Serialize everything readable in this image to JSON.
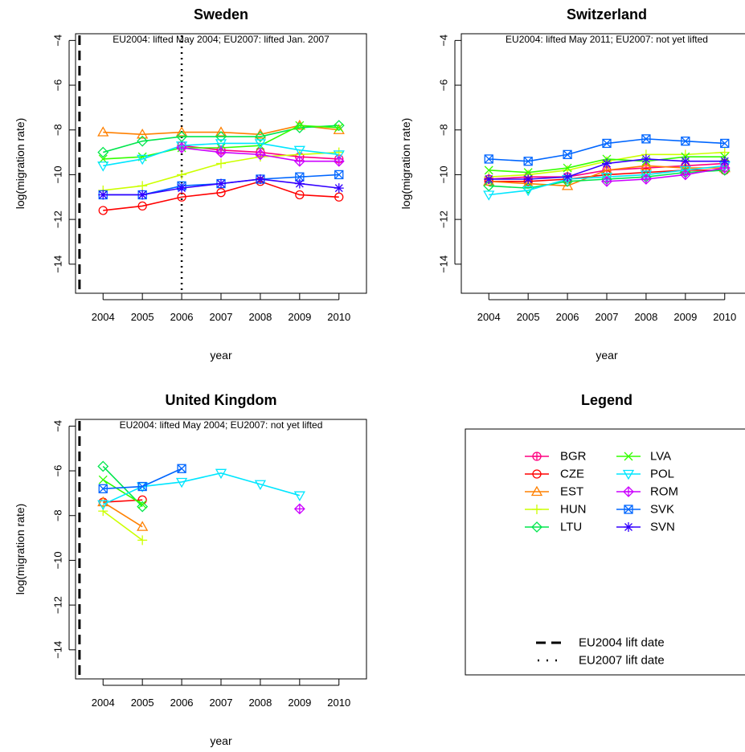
{
  "chart_data": [
    {
      "type": "line",
      "title": "Sweden",
      "subtitle": "EU2004: lifted May 2004; EU2007: lifted Jan. 2007",
      "xlabel": "year",
      "ylabel": "log(migration rate)",
      "x": [
        2004,
        2005,
        2006,
        2007,
        2008,
        2009,
        2010
      ],
      "x_ticks": [
        "2004",
        "2005",
        "2006",
        "2007",
        "2008",
        "2009",
        "2010"
      ],
      "y_ticks": [
        "−4",
        "−6",
        "−8",
        "−10",
        "−12",
        "−14"
      ],
      "ylim": [
        -15.3,
        -3.7
      ],
      "vlines": [
        {
          "name": "EU2004 lift date",
          "x": 2003.4,
          "style": "dashed"
        },
        {
          "name": "EU2007 lift date",
          "x": 2006.0,
          "style": "dotted"
        }
      ],
      "series": [
        {
          "name": "BGR",
          "values": [
            null,
            null,
            -8.7,
            -8.9,
            -9.0,
            -9.2,
            -9.3
          ]
        },
        {
          "name": "CZE",
          "values": [
            -11.6,
            -11.4,
            -11.0,
            -10.8,
            -10.3,
            -10.9,
            -11.0
          ]
        },
        {
          "name": "EST",
          "values": [
            -8.1,
            -8.2,
            -8.1,
            -8.1,
            -8.2,
            -7.8,
            -8.0
          ]
        },
        {
          "name": "HUN",
          "values": [
            -10.7,
            -10.5,
            -10.0,
            -9.5,
            -9.2,
            -9.1,
            -9.0
          ]
        },
        {
          "name": "LTU",
          "values": [
            -9.0,
            -8.5,
            -8.3,
            -8.3,
            -8.3,
            -7.9,
            -7.8
          ]
        },
        {
          "name": "LVA",
          "values": [
            -9.3,
            -9.2,
            -8.8,
            -8.8,
            -8.7,
            -7.8,
            -7.9
          ]
        },
        {
          "name": "POL",
          "values": [
            -9.6,
            -9.3,
            -8.7,
            -8.6,
            -8.6,
            -8.9,
            -9.1
          ]
        },
        {
          "name": "ROM",
          "values": [
            null,
            null,
            -8.8,
            -9.0,
            -9.1,
            -9.4,
            -9.4
          ]
        },
        {
          "name": "SVK",
          "values": [
            -10.9,
            -10.9,
            -10.5,
            -10.4,
            -10.2,
            -10.1,
            -10.0
          ]
        },
        {
          "name": "SVN",
          "values": [
            -10.9,
            -10.9,
            -10.6,
            -10.4,
            -10.2,
            -10.4,
            -10.6
          ]
        }
      ]
    },
    {
      "type": "line",
      "title": "Switzerland",
      "subtitle": "EU2004: lifted May 2011; EU2007: not yet lifted",
      "xlabel": "year",
      "ylabel": "log(migration rate)",
      "x": [
        2004,
        2005,
        2006,
        2007,
        2008,
        2009,
        2010
      ],
      "x_ticks": [
        "2004",
        "2005",
        "2006",
        "2007",
        "2008",
        "2009",
        "2010"
      ],
      "y_ticks": [
        "−4",
        "−6",
        "−8",
        "−10",
        "−12",
        "−14"
      ],
      "ylim": [
        -15.3,
        -3.7
      ],
      "vlines": [],
      "series": [
        {
          "name": "BGR",
          "values": [
            -10.2,
            -10.1,
            -10.1,
            -9.8,
            -9.7,
            -9.6,
            -9.5
          ]
        },
        {
          "name": "CZE",
          "values": [
            -10.3,
            -10.3,
            -10.2,
            -10.0,
            -9.9,
            -9.8,
            -9.8
          ]
        },
        {
          "name": "EST",
          "values": [
            -10.3,
            -10.4,
            -10.5,
            -9.8,
            -9.6,
            -9.7,
            -9.7
          ]
        },
        {
          "name": "HUN",
          "values": [
            -10.1,
            -10.0,
            -9.8,
            -9.4,
            -9.1,
            -9.1,
            -9.0
          ]
        },
        {
          "name": "LTU",
          "values": [
            -10.5,
            -10.6,
            -10.3,
            -10.2,
            -10.1,
            -9.9,
            -9.8
          ]
        },
        {
          "name": "LVA",
          "values": [
            -9.8,
            -9.9,
            -9.7,
            -9.3,
            -9.4,
            -9.2,
            -9.2
          ]
        },
        {
          "name": "POL",
          "values": [
            -10.9,
            -10.7,
            -10.2,
            -10.1,
            -10.0,
            -9.8,
            -9.6
          ]
        },
        {
          "name": "ROM",
          "values": [
            null,
            null,
            null,
            -10.3,
            -10.2,
            -10.0,
            -9.7
          ]
        },
        {
          "name": "SVK",
          "values": [
            -9.3,
            -9.4,
            -9.1,
            -8.6,
            -8.4,
            -8.5,
            -8.6
          ]
        },
        {
          "name": "SVN",
          "values": [
            -10.2,
            -10.2,
            -10.1,
            -9.5,
            -9.3,
            -9.4,
            -9.4
          ]
        }
      ]
    },
    {
      "type": "line",
      "title": "United Kingdom",
      "subtitle": "EU2004: lifted May 2004; EU2007: not yet lifted",
      "xlabel": "year",
      "ylabel": "log(migration rate)",
      "x": [
        2004,
        2005,
        2006,
        2007,
        2008,
        2009,
        2010
      ],
      "x_ticks": [
        "2004",
        "2005",
        "2006",
        "2007",
        "2008",
        "2009",
        "2010"
      ],
      "y_ticks": [
        "−4",
        "−6",
        "−8",
        "−10",
        "−12",
        "−14"
      ],
      "ylim": [
        -15.3,
        -3.7
      ],
      "vlines": [
        {
          "name": "EU2004 lift date",
          "x": 2003.4,
          "style": "dashed"
        }
      ],
      "series": [
        {
          "name": "BGR",
          "values": [
            null,
            null,
            null,
            null,
            null,
            null,
            null
          ]
        },
        {
          "name": "CZE",
          "values": [
            -7.4,
            -7.3,
            null,
            null,
            null,
            null,
            null
          ]
        },
        {
          "name": "EST",
          "values": [
            -7.4,
            -8.5,
            null,
            null,
            null,
            null,
            null
          ]
        },
        {
          "name": "HUN",
          "values": [
            -7.8,
            -9.1,
            null,
            null,
            null,
            null,
            null
          ]
        },
        {
          "name": "LTU",
          "values": [
            -5.8,
            -7.6,
            null,
            null,
            null,
            null,
            null
          ]
        },
        {
          "name": "LVA",
          "values": [
            -6.4,
            -7.5,
            null,
            null,
            null,
            null,
            null
          ]
        },
        {
          "name": "POL",
          "values": [
            -7.5,
            -6.7,
            -6.5,
            -6.1,
            -6.6,
            -7.1,
            null
          ]
        },
        {
          "name": "ROM",
          "values": [
            null,
            null,
            null,
            null,
            null,
            -7.7,
            null
          ]
        },
        {
          "name": "SVK",
          "values": [
            -6.8,
            -6.7,
            -5.9,
            null,
            null,
            null,
            null
          ]
        },
        {
          "name": "SVN",
          "values": [
            null,
            null,
            null,
            null,
            null,
            null,
            null
          ]
        }
      ]
    }
  ],
  "legend": {
    "title": "Legend",
    "items": [
      {
        "name": "BGR",
        "color": "#ff0080",
        "symbol": "circle-plus"
      },
      {
        "name": "CZE",
        "color": "#ff0000",
        "symbol": "circle"
      },
      {
        "name": "EST",
        "color": "#ff8000",
        "symbol": "triangle-up"
      },
      {
        "name": "HUN",
        "color": "#ccff00",
        "symbol": "plus"
      },
      {
        "name": "LTU",
        "color": "#00e64d",
        "symbol": "diamond"
      },
      {
        "name": "LVA",
        "color": "#33ff00",
        "symbol": "x"
      },
      {
        "name": "POL",
        "color": "#00e6ff",
        "symbol": "triangle-down"
      },
      {
        "name": "ROM",
        "color": "#cc00ff",
        "symbol": "diamond-plus"
      },
      {
        "name": "SVK",
        "color": "#0066ff",
        "symbol": "square-x"
      },
      {
        "name": "SVN",
        "color": "#3300ff",
        "symbol": "asterisk"
      }
    ],
    "line_items": [
      {
        "label": "EU2004 lift date",
        "style": "dashed"
      },
      {
        "label": "EU2007 lift date",
        "style": "dotted"
      }
    ]
  }
}
